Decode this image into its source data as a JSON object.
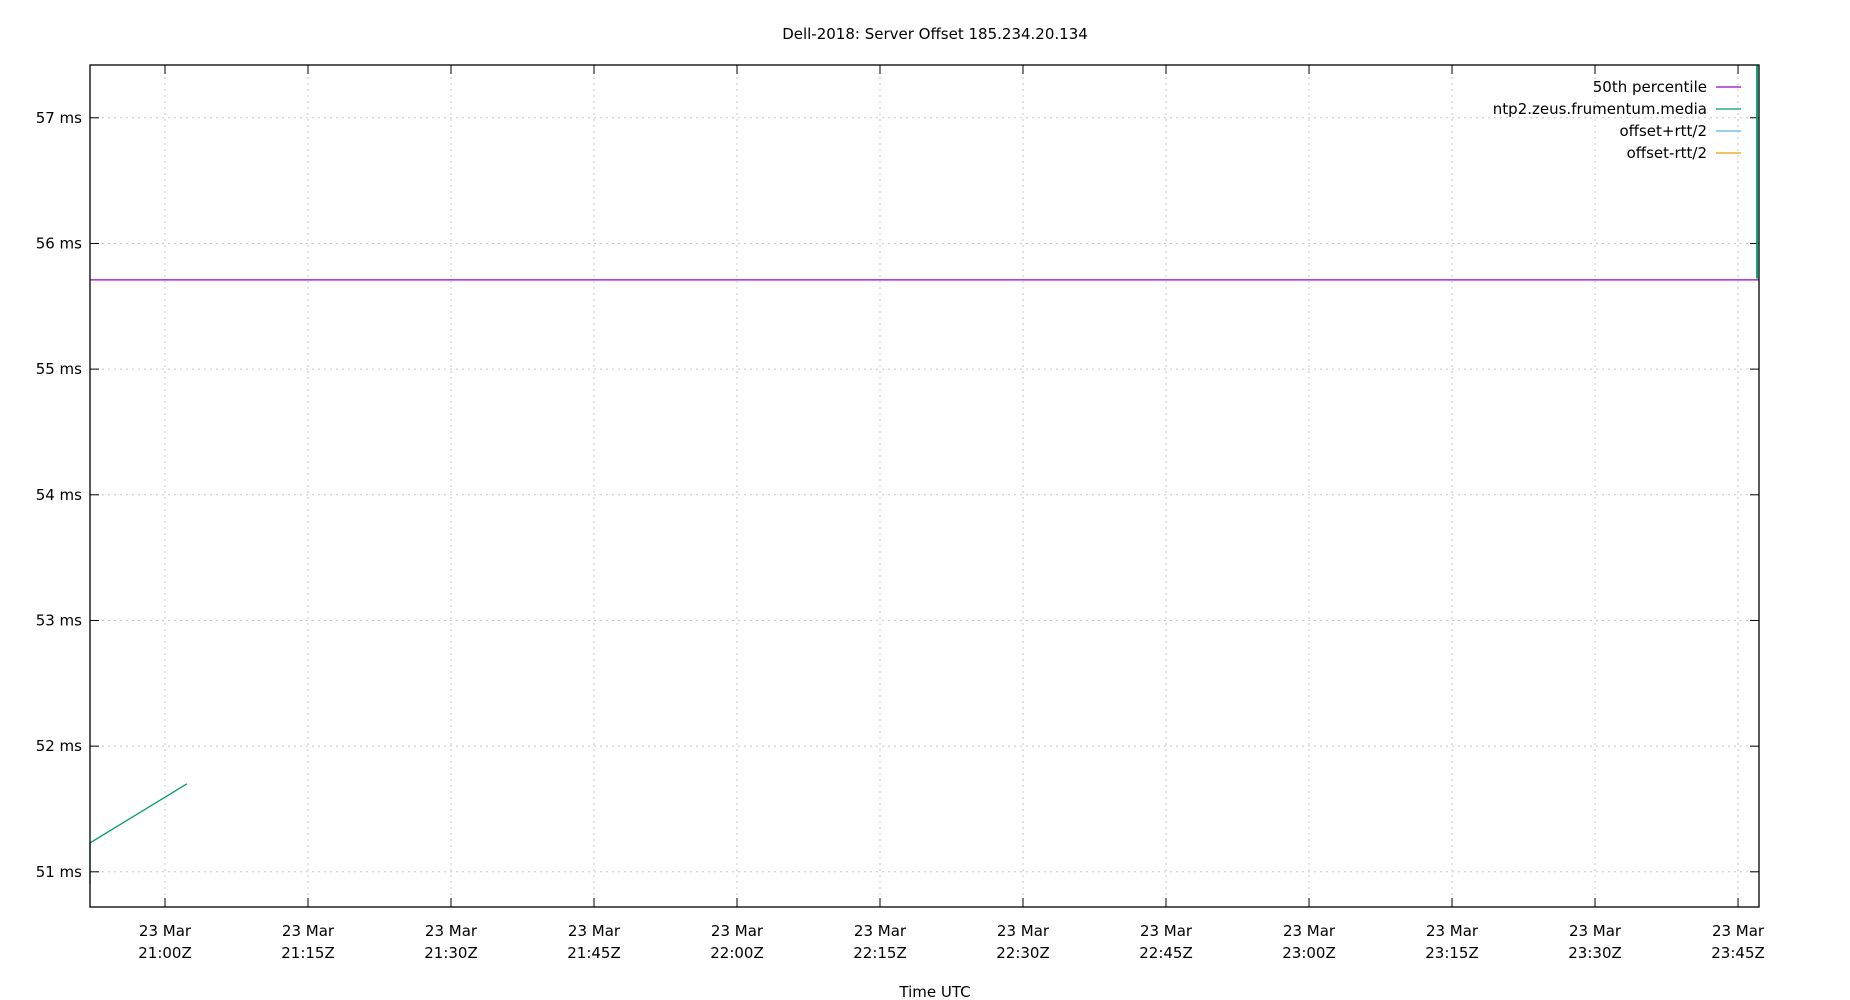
{
  "chart_data": {
    "type": "line",
    "title": "Dell-2018: Server Offset 185.234.20.134",
    "xlabel": "Time UTC",
    "ylabel": "",
    "xlim": [
      "20:52:08",
      "23:47:12"
    ],
    "ylim": [
      50.72,
      57.42
    ],
    "grid": true,
    "legend_position": "top-right",
    "y_ticks": [
      51,
      52,
      53,
      54,
      55,
      56,
      57
    ],
    "y_tick_suffix": " ms",
    "x_ticks": [
      {
        "t": "21:00",
        "l1": "23 Mar",
        "l2": "21:00Z"
      },
      {
        "t": "21:15",
        "l1": "23 Mar",
        "l2": "21:15Z"
      },
      {
        "t": "21:30",
        "l1": "23 Mar",
        "l2": "21:30Z"
      },
      {
        "t": "21:45",
        "l1": "23 Mar",
        "l2": "21:45Z"
      },
      {
        "t": "22:00",
        "l1": "23 Mar",
        "l2": "22:00Z"
      },
      {
        "t": "22:15",
        "l1": "23 Mar",
        "l2": "22:15Z"
      },
      {
        "t": "22:30",
        "l1": "23 Mar",
        "l2": "22:30Z"
      },
      {
        "t": "22:45",
        "l1": "23 Mar",
        "l2": "22:45Z"
      },
      {
        "t": "23:00",
        "l1": "23 Mar",
        "l2": "23:00Z"
      },
      {
        "t": "23:15",
        "l1": "23 Mar",
        "l2": "23:15Z"
      },
      {
        "t": "23:30",
        "l1": "23 Mar",
        "l2": "23:30Z"
      },
      {
        "t": "23:45",
        "l1": "23 Mar",
        "l2": "23:45Z"
      }
    ],
    "series": [
      {
        "name": "50th percentile",
        "color": "#9400d3",
        "points": [
          [
            "20:52:08",
            55.71
          ],
          [
            "23:47:12",
            55.71
          ]
        ]
      },
      {
        "name": "ntp2.zeus.frumentum.media",
        "color": "#009e73",
        "points": [
          [
            "20:52:08",
            50.9
          ],
          [
            "20:52:08",
            51.23
          ],
          [
            "21:02:18",
            51.7
          ]
        ],
        "points_right": [
          [
            "23:47:00",
            55.72
          ],
          [
            "23:47:00",
            57.42
          ]
        ]
      },
      {
        "name": "offset+rtt/2",
        "color": "#56b4e9",
        "points": []
      },
      {
        "name": "offset-rtt/2",
        "color": "#e69f00",
        "points": []
      }
    ]
  }
}
